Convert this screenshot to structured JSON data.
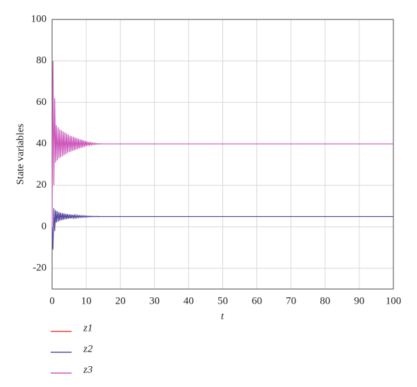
{
  "chart_data": {
    "type": "line",
    "xlabel": "t",
    "ylabel": "State variables",
    "x": [
      0,
      0.25,
      0.5,
      0.75,
      1,
      1.25,
      1.5,
      1.75,
      2,
      2.25,
      2.5,
      2.75,
      3,
      3.25,
      3.5,
      3.75,
      4,
      4.25,
      4.5,
      4.75,
      5,
      5.25,
      5.5,
      5.75,
      6,
      6.25,
      6.5,
      6.75,
      7,
      7.25,
      7.5,
      7.75,
      8,
      8.25,
      8.5,
      8.75,
      9,
      9.25,
      9.5,
      9.75,
      10,
      10.25,
      10.5,
      10.75,
      11,
      11.25,
      11.5,
      11.75,
      12,
      12.25,
      12.5,
      12.75,
      13,
      13.25,
      13.5,
      13.75,
      14,
      14.25,
      14.5,
      14.75,
      15,
      20,
      30,
      40,
      50,
      60,
      70,
      80,
      90,
      100
    ],
    "series": [
      {
        "name": "z1",
        "color": "#e8403a",
        "values": [
          0,
          -9,
          8,
          -1,
          8,
          2,
          7.5,
          2.5,
          7,
          3,
          6.8,
          3.2,
          6.6,
          3.4,
          6.4,
          3.6,
          6.2,
          3.8,
          6.1,
          3.9,
          6,
          4,
          5.9,
          4.1,
          5.8,
          4.2,
          5.7,
          4.3,
          5.6,
          4.4,
          5.5,
          4.5,
          5.45,
          4.55,
          5.4,
          4.6,
          5.35,
          4.65,
          5.3,
          4.7,
          5.25,
          4.75,
          5.2,
          4.8,
          5.15,
          4.85,
          5.1,
          4.9,
          5.08,
          4.92,
          5.06,
          4.94,
          5.04,
          4.96,
          5.02,
          4.98,
          5,
          5,
          5,
          5,
          5,
          5,
          5,
          5,
          5,
          5,
          5,
          5,
          5,
          5
        ]
      },
      {
        "name": "z2",
        "color": "#4a4aa8",
        "values": [
          0,
          -11,
          9,
          -2,
          8,
          2,
          7.5,
          2.5,
          7,
          3,
          6.8,
          3.2,
          6.6,
          3.4,
          6.4,
          3.6,
          6.2,
          3.8,
          6.1,
          3.9,
          6,
          4,
          5.9,
          4.1,
          5.8,
          4.2,
          5.7,
          4.3,
          5.6,
          4.4,
          5.5,
          4.5,
          5.45,
          4.55,
          5.4,
          4.6,
          5.35,
          4.65,
          5.3,
          4.7,
          5.25,
          4.75,
          5.2,
          4.8,
          5.15,
          4.85,
          5.1,
          4.9,
          5.08,
          4.92,
          5.06,
          4.94,
          5.04,
          4.96,
          5.02,
          4.98,
          5,
          5,
          5,
          5,
          5,
          5,
          5,
          5,
          5,
          5,
          5,
          5,
          5,
          5
        ]
      },
      {
        "name": "z3",
        "color": "#cc55bb",
        "values": [
          0,
          80,
          20,
          62,
          31,
          49,
          32,
          48,
          33,
          47,
          33.5,
          46.5,
          34,
          46,
          34.5,
          45.5,
          35,
          45,
          35.5,
          44.5,
          36,
          44,
          36.3,
          43.7,
          36.6,
          43.4,
          36.9,
          43.1,
          37.2,
          42.8,
          37.5,
          42.5,
          37.8,
          42.2,
          38,
          42,
          38.3,
          41.7,
          38.6,
          41.4,
          38.9,
          41.1,
          39.1,
          40.9,
          39.3,
          40.7,
          39.5,
          40.5,
          39.6,
          40.4,
          39.7,
          40.3,
          39.8,
          40.2,
          39.9,
          40.1,
          39.9,
          40.1,
          40,
          40,
          40,
          40,
          40,
          40,
          40,
          40,
          40,
          40,
          40,
          40
        ]
      }
    ],
    "xlim": [
      0,
      100
    ],
    "xticks": [
      0,
      10,
      20,
      30,
      40,
      50,
      60,
      70,
      80,
      90,
      100
    ],
    "ylim": [
      -30,
      100
    ],
    "yticks": [
      -20,
      0,
      20,
      40,
      60,
      80,
      100
    ],
    "grid": true,
    "legend": "bottom"
  }
}
